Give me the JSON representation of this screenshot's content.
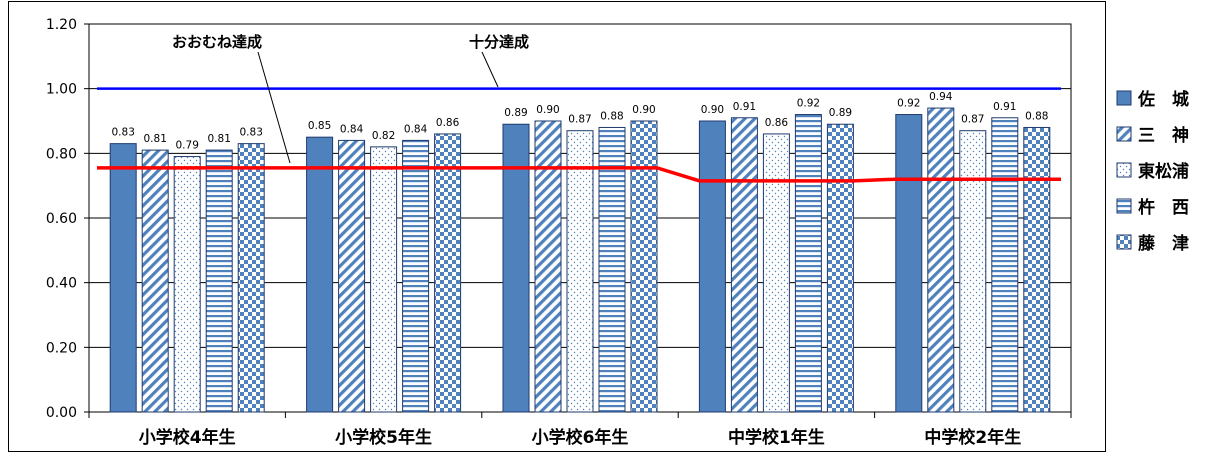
{
  "chart_data": {
    "type": "bar",
    "categories": [
      "小学校4年生",
      "小学校5年生",
      "小学校6年生",
      "中学校1年生",
      "中学校2年生"
    ],
    "series": [
      {
        "name": "佐　城",
        "values": [
          0.83,
          0.85,
          0.89,
          0.9,
          0.92
        ],
        "labels": [
          "0.83",
          "0.85",
          "0.89",
          "0.90",
          "0.92"
        ],
        "pattern": "solid"
      },
      {
        "name": "三　神",
        "values": [
          0.81,
          0.84,
          0.9,
          0.91,
          0.94
        ],
        "labels": [
          "0.81",
          "0.84",
          "0.90",
          "0.91",
          "0.94"
        ],
        "pattern": "diagonal"
      },
      {
        "name": "東松浦",
        "values": [
          0.79,
          0.82,
          0.87,
          0.86,
          0.87
        ],
        "labels": [
          "0.79",
          "0.82",
          "0.87",
          "0.86",
          "0.87"
        ],
        "pattern": "dots"
      },
      {
        "name": "杵　西",
        "values": [
          0.81,
          0.84,
          0.88,
          0.92,
          0.91
        ],
        "labels": [
          "0.81",
          "0.84",
          "0.88",
          "0.92",
          "0.91"
        ],
        "pattern": "horizontal"
      },
      {
        "name": "藤　津",
        "values": [
          0.83,
          0.86,
          0.9,
          0.89,
          0.88
        ],
        "labels": [
          "0.83",
          "0.86",
          "0.90",
          "0.89",
          "0.88"
        ],
        "pattern": "checker"
      }
    ],
    "reference_lines": [
      {
        "label": "十分達成",
        "values": [
          1.0,
          1.0,
          1.0,
          1.0,
          1.0
        ],
        "color": "#0000ff"
      },
      {
        "label": "おおむね達成",
        "values": [
          0.755,
          0.755,
          0.755,
          0.715,
          0.72
        ],
        "color": "#ff0000"
      }
    ],
    "ylim": [
      0,
      1.2
    ],
    "yticks": [
      "0.00",
      "0.20",
      "0.40",
      "0.60",
      "0.80",
      "1.00",
      "1.20"
    ],
    "grid": true,
    "legend_position": "right",
    "colors": {
      "bar_blue": "#4f81bd",
      "bar_outline": "#1f3a6e",
      "blue_line": "#0000ff",
      "red_line": "#ff0000"
    }
  }
}
